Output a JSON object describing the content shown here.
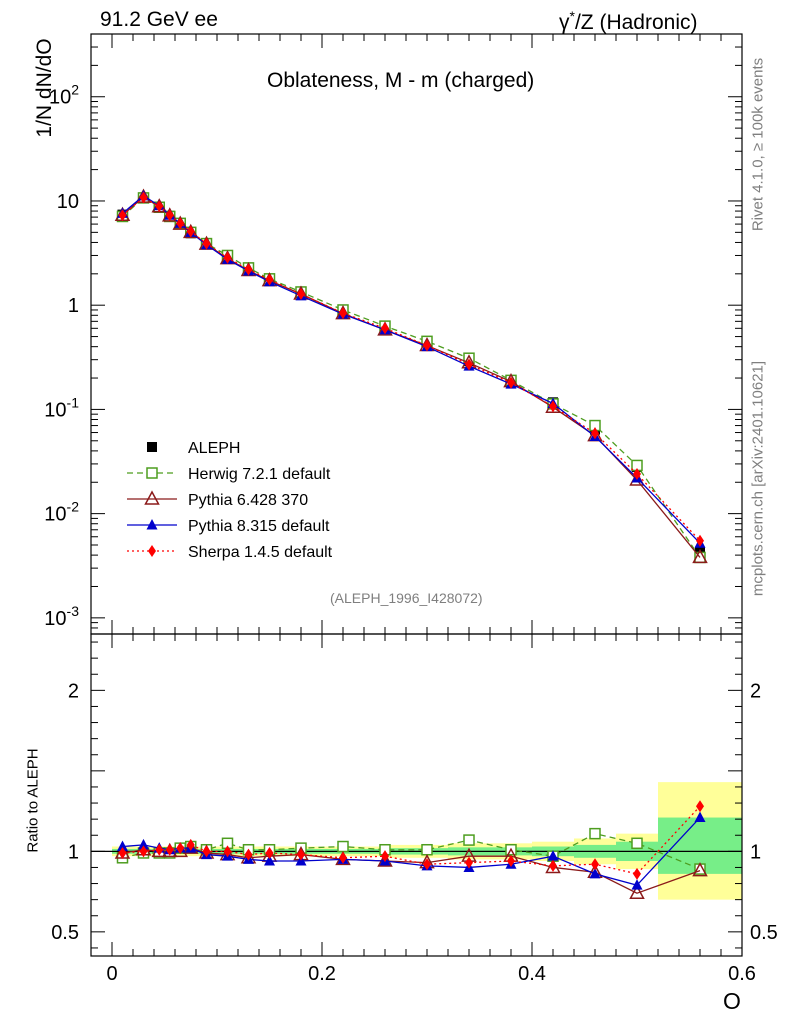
{
  "header": {
    "left": "91.2 GeV ee",
    "right_prefix": "γ",
    "right_sup": "*",
    "right_suffix": "/Z (Hadronic)"
  },
  "side_labels": {
    "rivet": "Rivet 4.1.0, ≥ 100k events",
    "mcplots": "mcplots.cern.ch [arXiv:2401.10621]"
  },
  "chart_data": [
    {
      "type": "line",
      "panel": "main",
      "title": "Oblateness, M - m (charged)",
      "ylabel": "1/N  dN/dO",
      "yscale": "log",
      "ylim": [
        0.0007,
        400
      ],
      "xlim": [
        -0.02,
        0.6
      ],
      "y_ticks": [
        {
          "v": 0.001,
          "base": "10",
          "exp": "-3"
        },
        {
          "v": 0.01,
          "base": "10",
          "exp": "-2"
        },
        {
          "v": 0.1,
          "base": "10",
          "exp": "-1"
        },
        {
          "v": 1,
          "base": "1",
          "exp": ""
        },
        {
          "v": 10,
          "base": "10",
          "exp": ""
        },
        {
          "v": 100,
          "base": "10",
          "exp": "2"
        }
      ],
      "watermark": "(ALEPH_1996_I428072)",
      "x": [
        0.01,
        0.03,
        0.045,
        0.055,
        0.065,
        0.075,
        0.09,
        0.11,
        0.13,
        0.15,
        0.18,
        0.22,
        0.26,
        0.3,
        0.34,
        0.38,
        0.42,
        0.46,
        0.5,
        0.56
      ],
      "series": [
        {
          "name": "ALEPH",
          "color": "#000000",
          "values": [
            7.4,
            10.8,
            8.8,
            7.2,
            6.0,
            4.9,
            3.9,
            2.85,
            2.25,
            1.78,
            1.31,
            0.87,
            0.62,
            0.44,
            0.29,
            0.19,
            0.117,
            0.064,
            0.028,
            0.0043
          ]
        },
        {
          "name": "Herwig 7.2.1 default",
          "color": "#4d9d1f",
          "values": [
            7.1,
            10.7,
            8.7,
            7.1,
            6.1,
            5.0,
            3.9,
            3.0,
            2.28,
            1.79,
            1.34,
            0.9,
            0.63,
            0.45,
            0.31,
            0.19,
            0.113,
            0.07,
            0.029,
            0.0038
          ]
        },
        {
          "name": "Pythia 6.428 370",
          "color": "#8b1a1a",
          "values": [
            7.3,
            10.9,
            8.8,
            7.2,
            6.0,
            5.0,
            3.85,
            2.8,
            2.15,
            1.72,
            1.28,
            0.83,
            0.58,
            0.41,
            0.28,
            0.185,
            0.105,
            0.056,
            0.021,
            0.0038
          ]
        },
        {
          "name": "Pythia 8.315 default",
          "color": "#0000cc",
          "values": [
            7.6,
            11.2,
            9.0,
            7.3,
            6.1,
            5.0,
            3.8,
            2.75,
            2.13,
            1.68,
            1.23,
            0.82,
            0.58,
            0.4,
            0.26,
            0.175,
            0.114,
            0.055,
            0.022,
            0.0052
          ]
        },
        {
          "name": "Sherpa 1.4.5 default",
          "color": "#ff0000",
          "values": [
            7.3,
            10.8,
            8.9,
            7.3,
            6.1,
            5.1,
            3.9,
            2.85,
            2.2,
            1.76,
            1.28,
            0.84,
            0.6,
            0.41,
            0.27,
            0.18,
            0.107,
            0.059,
            0.024,
            0.0055
          ]
        }
      ]
    },
    {
      "type": "line",
      "panel": "ratio",
      "ylabel": "Ratio to ALEPH",
      "xlabel": "O",
      "ylim": [
        0.35,
        2.35
      ],
      "xlim": [
        -0.02,
        0.6
      ],
      "y_ticks": [
        0.5,
        1,
        2
      ],
      "y_tick_labels": [
        "0.5",
        "1",
        "2"
      ],
      "x_ticks": [
        0,
        0.2,
        0.4,
        0.6
      ],
      "x_tick_labels": [
        "0",
        "0.2",
        "0.4",
        "0.6"
      ],
      "bands": [
        {
          "x0": 0.0,
          "x1": 0.26,
          "y_inner": [
            0.985,
            1.015
          ],
          "y_outer": [
            0.97,
            1.03
          ]
        },
        {
          "x0": 0.26,
          "x1": 0.32,
          "y_inner": [
            0.98,
            1.02
          ],
          "y_outer": [
            0.96,
            1.04
          ]
        },
        {
          "x0": 0.32,
          "x1": 0.4,
          "y_inner": [
            0.975,
            1.025
          ],
          "y_outer": [
            0.95,
            1.05
          ]
        },
        {
          "x0": 0.4,
          "x1": 0.44,
          "y_inner": [
            0.97,
            1.03
          ],
          "y_outer": [
            0.94,
            1.06
          ]
        },
        {
          "x0": 0.44,
          "x1": 0.48,
          "y_inner": [
            0.96,
            1.04
          ],
          "y_outer": [
            0.92,
            1.08
          ]
        },
        {
          "x0": 0.48,
          "x1": 0.52,
          "y_inner": [
            0.94,
            1.06
          ],
          "y_outer": [
            0.89,
            1.11
          ]
        },
        {
          "x0": 0.52,
          "x1": 0.6,
          "y_inner": [
            0.86,
            1.21
          ],
          "y_outer": [
            0.7,
            1.43
          ]
        }
      ],
      "x": [
        0.01,
        0.03,
        0.045,
        0.055,
        0.065,
        0.075,
        0.09,
        0.11,
        0.13,
        0.15,
        0.18,
        0.22,
        0.26,
        0.3,
        0.34,
        0.38,
        0.42,
        0.46,
        0.5,
        0.56
      ],
      "series": [
        {
          "name": "Herwig 7.2.1 default",
          "color": "#4d9d1f",
          "values": [
            0.96,
            0.99,
            0.99,
            0.99,
            1.02,
            1.03,
            1.01,
            1.05,
            1.01,
            1.01,
            1.02,
            1.03,
            1.01,
            1.01,
            1.07,
            1.01,
            0.97,
            1.11,
            1.05,
            0.89
          ]
        },
        {
          "name": "Pythia 6.428 370",
          "color": "#8b1a1a",
          "values": [
            0.99,
            1.01,
            1.0,
            1.0,
            1.0,
            1.02,
            0.99,
            0.98,
            0.96,
            0.97,
            0.98,
            0.95,
            0.94,
            0.93,
            0.97,
            0.97,
            0.9,
            0.87,
            0.74,
            0.88
          ]
        },
        {
          "name": "Pythia 8.315 default",
          "color": "#0000cc",
          "values": [
            1.03,
            1.04,
            1.02,
            1.01,
            1.02,
            1.02,
            0.98,
            0.97,
            0.95,
            0.94,
            0.94,
            0.95,
            0.94,
            0.91,
            0.9,
            0.92,
            0.97,
            0.86,
            0.79,
            1.21
          ]
        },
        {
          "name": "Sherpa 1.4.5 default",
          "color": "#ff0000",
          "values": [
            0.99,
            1.0,
            1.01,
            1.01,
            1.02,
            1.04,
            1.0,
            1.0,
            0.98,
            0.99,
            0.98,
            0.96,
            0.97,
            0.92,
            0.93,
            0.94,
            0.91,
            0.92,
            0.86,
            1.28
          ]
        }
      ]
    }
  ]
}
